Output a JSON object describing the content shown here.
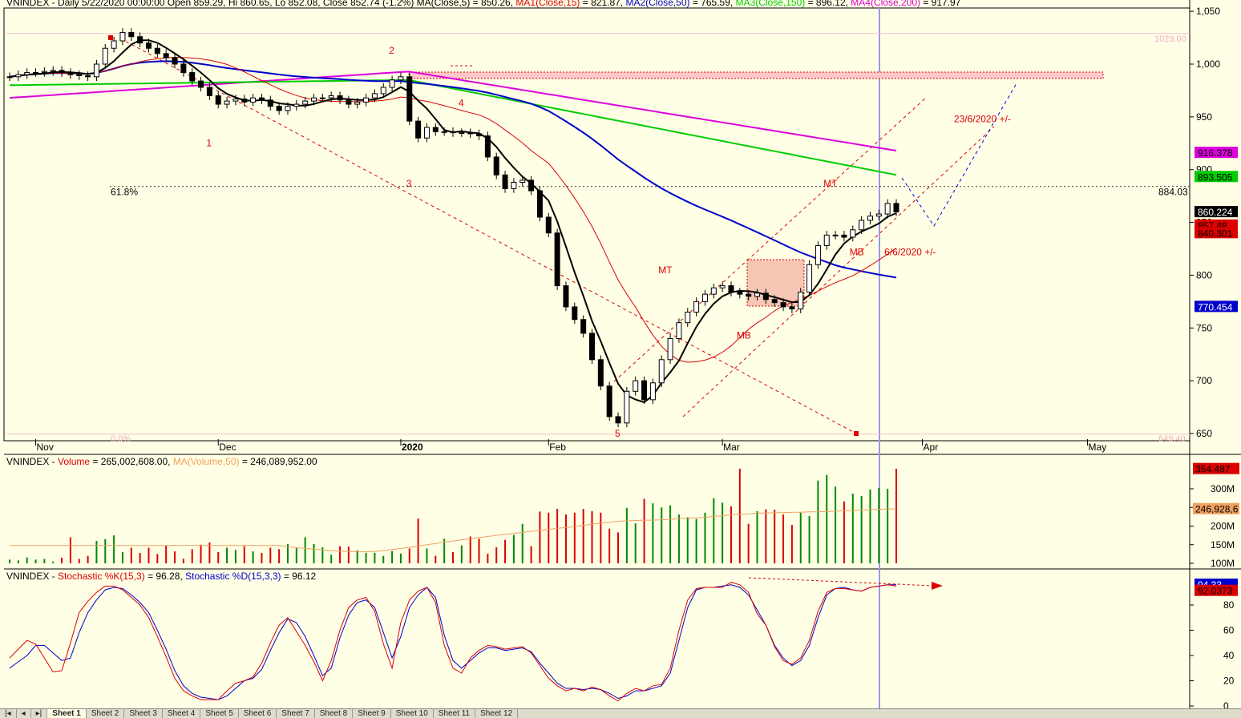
{
  "header": {
    "main": [
      {
        "t": "VNINDEX - Daily 5/22/2020 00:00:00 Open 859.29, Hi 860.65, Lo 852.08, Close 852.74 (-1.2%) ",
        "c": "#000000"
      },
      {
        "t": "MA(Close,5)",
        "c": "#000000"
      },
      {
        "t": " = 850.26, ",
        "c": "#000000"
      },
      {
        "t": "MA1(Close,15)",
        "c": "#DD0000"
      },
      {
        "t": " = 821.87, ",
        "c": "#000000"
      },
      {
        "t": "MA2(Close,50)",
        "c": "#0000CC"
      },
      {
        "t": " = 765.59, ",
        "c": "#000000"
      },
      {
        "t": "MA3(Close,150)",
        "c": "#00CC00"
      },
      {
        "t": " = 896.12, ",
        "c": "#000000"
      },
      {
        "t": "MA4(Close,200)",
        "c": "#DD00DD"
      },
      {
        "t": " = 917.97",
        "c": "#000000"
      }
    ],
    "volume": [
      {
        "t": "VNINDEX - ",
        "c": "#000000"
      },
      {
        "t": "Volume",
        "c": "#DD0000"
      },
      {
        "t": " = 265,002,608.00, ",
        "c": "#000000"
      },
      {
        "t": "MA(Volume,50)",
        "c": "#F0A060"
      },
      {
        "t": " = 246,089,952.00",
        "c": "#000000"
      }
    ],
    "stoch": [
      {
        "t": "VNINDEX - ",
        "c": "#000000"
      },
      {
        "t": "Stochastic %K(15,3)",
        "c": "#DD0000"
      },
      {
        "t": " = 96.28, ",
        "c": "#000000"
      },
      {
        "t": "Stochastic %D(15,3,3)",
        "c": "#0000CC"
      },
      {
        "t": " = 96.12",
        "c": "#000000"
      }
    ]
  },
  "chart_data": {
    "type": "candlestick",
    "x_labels": [
      {
        "label": "Nov",
        "i": 3
      },
      {
        "label": "Dec",
        "i": 24
      },
      {
        "label": "2020",
        "i": 45
      },
      {
        "label": "Feb",
        "i": 62
      },
      {
        "label": "Mar",
        "i": 82
      },
      {
        "label": "Apr",
        "i": 105
      },
      {
        "label": "May",
        "i": 124
      }
    ],
    "price_axis": {
      "ticks": [
        {
          "v": 1050,
          "label": "1,050"
        },
        {
          "v": 1000,
          "label": "1,000"
        },
        {
          "v": 950,
          "label": "950"
        },
        {
          "v": 900,
          "label": "900"
        },
        {
          "v": 850,
          "label": "850"
        },
        {
          "v": 800,
          "label": "800"
        },
        {
          "v": 750,
          "label": "750"
        },
        {
          "v": 700,
          "label": "700"
        },
        {
          "v": 650,
          "label": "650"
        }
      ]
    },
    "price_badges": [
      {
        "label": "916.378",
        "v": 916.378,
        "bg": "#DD00DD",
        "fg": "#000000"
      },
      {
        "label": "893.505",
        "v": 893.505,
        "bg": "#00CC00",
        "fg": "#000000"
      },
      {
        "label": "860.224",
        "v": 860.224,
        "bg": "#000000",
        "fg": "#FFFFFF"
      },
      {
        "label": "857.48",
        "v": 847.5,
        "bg": "#DD0000",
        "fg": "#000000"
      },
      {
        "label": "840.301",
        "v": 840.301,
        "bg": "#DD0000",
        "fg": "#000000"
      },
      {
        "label": "770.454",
        "v": 770.454,
        "bg": "#0000CC",
        "fg": "#FFFFFF"
      }
    ],
    "fib": {
      "top": {
        "v": 1029,
        "label": "1029.00"
      },
      "mid": {
        "v": 884.03,
        "label": "884.03",
        "pct": "61.8%"
      },
      "bottom": {
        "v": 649.4,
        "label": "649.40",
        "pct": "0.0%"
      }
    },
    "annotations": [
      {
        "t": "B",
        "i": 10,
        "v": 1069
      },
      {
        "t": "1",
        "i": 23,
        "v": 922
      },
      {
        "t": "2",
        "i": 44,
        "v": 1010
      },
      {
        "t": "3",
        "i": 46,
        "v": 884
      },
      {
        "t": "4",
        "i": 52,
        "v": 960
      },
      {
        "t": "5",
        "i": 70,
        "v": 647
      },
      {
        "t": "MT",
        "i": 75,
        "v": 802
      },
      {
        "t": "MB",
        "i": 84,
        "v": 740
      },
      {
        "t": "MT",
        "i": 94,
        "v": 884
      },
      {
        "t": "MB",
        "i": 97,
        "v": 819
      },
      {
        "t": "6/6/2020 +/-",
        "i": 101,
        "v": 819
      },
      {
        "t": "23/6/2020 +/-",
        "i": 109,
        "v": 945
      }
    ],
    "volume_axis": {
      "ticks": [
        {
          "v": 300,
          "label": "300M"
        },
        {
          "v": 250,
          "label": "250M"
        },
        {
          "v": 200,
          "label": "200M"
        },
        {
          "v": 150,
          "label": "150M"
        },
        {
          "v": 100,
          "label": "100M"
        }
      ],
      "badges": [
        {
          "label": "354.487",
          "v": 354.5,
          "bg": "#DD0000",
          "fg": "#000000"
        },
        {
          "label": "246,928,6",
          "v": 246.9,
          "bg": "#F0A060",
          "fg": "#000000"
        }
      ]
    },
    "stoch_axis": {
      "ticks": [
        {
          "v": 80,
          "label": "80"
        },
        {
          "v": 60,
          "label": "60"
        },
        {
          "v": 40,
          "label": "40"
        },
        {
          "v": 20,
          "label": "20"
        },
        {
          "v": 0,
          "label": "0"
        }
      ],
      "badges": [
        {
          "label": "94.33",
          "v": 96.5,
          "bg": "#0000CC",
          "fg": "#FFFFFF"
        },
        {
          "label": "92.0373",
          "v": 91.6,
          "bg": "#DD0000",
          "fg": "#000000"
        }
      ]
    },
    "closes": [
      988,
      990,
      992,
      992,
      993,
      994,
      992,
      990,
      989,
      988,
      1000,
      1015,
      1022,
      1030,
      1026,
      1020,
      1015,
      1010,
      1006,
      1000,
      992,
      984,
      978,
      970,
      962,
      965,
      967,
      964,
      968,
      966,
      960,
      956,
      960,
      962,
      965,
      968,
      968,
      970,
      966,
      962,
      964,
      968,
      972,
      978,
      985,
      988,
      946,
      930,
      940,
      936,
      936,
      935,
      935,
      934,
      932,
      912,
      895,
      882,
      888,
      890,
      880,
      855,
      840,
      790,
      770,
      758,
      745,
      720,
      695,
      666,
      660,
      690,
      700,
      682,
      698,
      720,
      740,
      755,
      765,
      775,
      782,
      788,
      790,
      784,
      782,
      780,
      783,
      777,
      774,
      770,
      768,
      784,
      810,
      828,
      838,
      838,
      836,
      843,
      852,
      856,
      858,
      868,
      860
    ],
    "volume": [
      110,
      108,
      116,
      110,
      112,
      105,
      115,
      170,
      112,
      120,
      160,
      165,
      175,
      130,
      142,
      128,
      142,
      125,
      148,
      132,
      112,
      138,
      150,
      156,
      130,
      142,
      136,
      146,
      132,
      128,
      142,
      138,
      152,
      142,
      170,
      152,
      143,
      123,
      146,
      145,
      135,
      128,
      128,
      120,
      133,
      126,
      140,
      220,
      140,
      120,
      166,
      130,
      148,
      172,
      166,
      126,
      143,
      163,
      176,
      206,
      146,
      239,
      236,
      246,
      231,
      236,
      246,
      240,
      236,
      193,
      183,
      249,
      207,
      273,
      261,
      250,
      256,
      231,
      224,
      219,
      236,
      275,
      263,
      253,
      354,
      206,
      240,
      245,
      244,
      231,
      203,
      236,
      227,
      322,
      337,
      306,
      266,
      287,
      281,
      298,
      302,
      300,
      354
    ],
    "vol_ma": [
      148,
      148,
      148,
      148,
      148,
      148,
      148,
      148,
      148,
      148,
      148,
      148,
      148,
      148,
      148,
      148,
      148,
      148,
      148,
      148,
      148,
      148,
      148,
      148,
      148,
      148,
      148,
      148,
      148,
      148,
      148,
      148,
      145,
      142,
      140,
      138,
      136,
      134,
      133,
      132,
      131,
      131,
      132,
      134,
      137,
      140,
      143,
      146,
      150,
      153,
      157,
      160,
      163,
      166,
      169,
      172,
      175,
      178,
      180,
      183,
      186,
      189,
      191,
      194,
      196,
      199,
      202,
      205,
      208,
      210,
      213,
      214,
      215,
      216,
      216,
      217,
      218,
      220,
      221,
      222,
      223,
      226,
      228,
      230,
      232,
      233,
      235,
      235,
      236,
      236,
      237,
      237,
      238,
      238,
      239,
      240,
      241,
      242,
      243,
      244,
      245,
      246,
      246
    ],
    "stoch_k": [
      38,
      45,
      52,
      49,
      38,
      27,
      28,
      50,
      74,
      83,
      90,
      95,
      95,
      92,
      86,
      80,
      70,
      55,
      39,
      22,
      12,
      8,
      5,
      5,
      5,
      12,
      18,
      20,
      23,
      34,
      50,
      64,
      70,
      59,
      48,
      35,
      20,
      36,
      60,
      78,
      84,
      86,
      75,
      49,
      30,
      66,
      84,
      91,
      94,
      82,
      48,
      30,
      26,
      38,
      44,
      48,
      47,
      45,
      46,
      47,
      42,
      32,
      22,
      16,
      12,
      14,
      12,
      15,
      13,
      8,
      4,
      10,
      14,
      12,
      16,
      17,
      30,
      60,
      84,
      93,
      94,
      94,
      94,
      98,
      96,
      90,
      73,
      64,
      47,
      36,
      33,
      38,
      52,
      75,
      90,
      93,
      93,
      92,
      91,
      94,
      95,
      96,
      95
    ],
    "stoch_d": [
      30,
      35,
      40,
      48,
      48,
      42,
      36,
      38,
      58,
      74,
      84,
      92,
      94,
      93,
      88,
      82,
      74,
      60,
      45,
      28,
      16,
      10,
      7,
      6,
      5,
      8,
      14,
      20,
      22,
      29,
      44,
      58,
      69,
      66,
      55,
      40,
      24,
      30,
      54,
      72,
      82,
      84,
      78,
      58,
      38,
      55,
      78,
      88,
      94,
      86,
      56,
      36,
      30,
      36,
      42,
      46,
      46,
      44,
      45,
      46,
      43,
      34,
      26,
      18,
      14,
      14,
      13,
      14,
      13,
      10,
      6,
      8,
      12,
      12,
      14,
      16,
      26,
      52,
      78,
      92,
      94,
      94,
      95,
      96,
      94,
      88,
      76,
      64,
      48,
      38,
      32,
      36,
      48,
      70,
      88,
      93,
      94,
      92,
      91,
      94,
      95,
      96,
      96
    ]
  },
  "tabs": [
    "|◂",
    "◂",
    "▸|",
    "Sheet 1",
    "Sheet 2",
    "Sheet 3",
    "Sheet 4",
    "Sheet 5",
    "Sheet 6",
    "Sheet 7",
    "Sheet 8",
    "Sheet 9",
    "Sheet 10",
    "Sheet 11",
    "Sheet 12"
  ]
}
